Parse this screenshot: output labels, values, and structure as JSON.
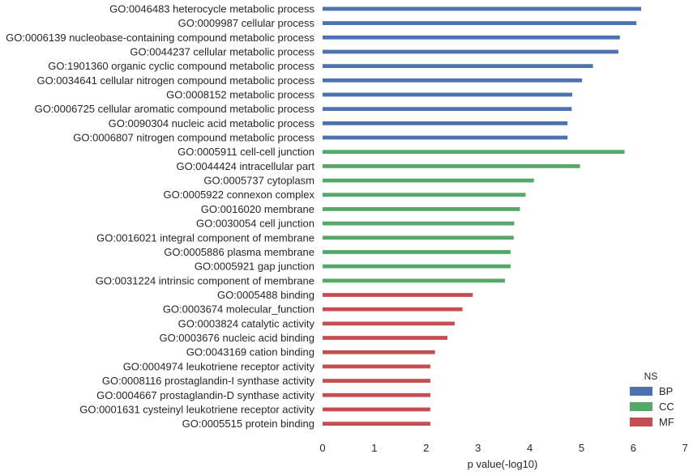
{
  "chart_data": {
    "type": "bar",
    "orientation": "horizontal",
    "xlabel": "p value(-log10)",
    "ylabel": "",
    "title": "",
    "xlim": [
      0,
      7
    ],
    "xticks": [
      0,
      1,
      2,
      3,
      4,
      5,
      6,
      7
    ],
    "grid": false,
    "legend": {
      "title": "NS",
      "placement": "bottom-right",
      "entries": [
        {
          "name": "BP",
          "color": "#4c72b0"
        },
        {
          "name": "CC",
          "color": "#55a868"
        },
        {
          "name": "MF",
          "color": "#c44e52"
        }
      ]
    },
    "bars": [
      {
        "label": "GO:0046483 heterocycle metabolic process",
        "value": 6.15,
        "ns": "BP"
      },
      {
        "label": "GO:0009987 cellular process",
        "value": 6.06,
        "ns": "BP"
      },
      {
        "label": "GO:0006139 nucleobase-containing compound metabolic process",
        "value": 5.74,
        "ns": "BP"
      },
      {
        "label": "GO:0044237 cellular metabolic process",
        "value": 5.71,
        "ns": "BP"
      },
      {
        "label": "GO:1901360 organic cyclic compound metabolic process",
        "value": 5.22,
        "ns": "BP"
      },
      {
        "label": "GO:0034641 cellular nitrogen compound metabolic process",
        "value": 5.01,
        "ns": "BP"
      },
      {
        "label": "GO:0008152 metabolic process",
        "value": 4.82,
        "ns": "BP"
      },
      {
        "label": "GO:0006725 cellular aromatic compound metabolic process",
        "value": 4.81,
        "ns": "BP"
      },
      {
        "label": "GO:0090304 nucleic acid metabolic process",
        "value": 4.73,
        "ns": "BP"
      },
      {
        "label": "GO:0006807 nitrogen compound metabolic process",
        "value": 4.73,
        "ns": "BP"
      },
      {
        "label": "GO:0005911 cell-cell junction",
        "value": 5.83,
        "ns": "CC"
      },
      {
        "label": "GO:0044424 intracellular part",
        "value": 4.97,
        "ns": "CC"
      },
      {
        "label": "GO:0005737 cytoplasm",
        "value": 4.08,
        "ns": "CC"
      },
      {
        "label": "GO:0005922 connexon complex",
        "value": 3.92,
        "ns": "CC"
      },
      {
        "label": "GO:0016020 membrane",
        "value": 3.81,
        "ns": "CC"
      },
      {
        "label": "GO:0030054 cell junction",
        "value": 3.7,
        "ns": "CC"
      },
      {
        "label": "GO:0016021 integral component of membrane",
        "value": 3.69,
        "ns": "CC"
      },
      {
        "label": "GO:0005886 plasma membrane",
        "value": 3.63,
        "ns": "CC"
      },
      {
        "label": "GO:0005921 gap junction",
        "value": 3.63,
        "ns": "CC"
      },
      {
        "label": "GO:0031224 intrinsic component of membrane",
        "value": 3.52,
        "ns": "CC"
      },
      {
        "label": "GO:0005488 binding",
        "value": 2.9,
        "ns": "MF"
      },
      {
        "label": "GO:0003674 molecular_function",
        "value": 2.7,
        "ns": "MF"
      },
      {
        "label": "GO:0003824 catalytic activity",
        "value": 2.55,
        "ns": "MF"
      },
      {
        "label": "GO:0003676 nucleic acid binding",
        "value": 2.41,
        "ns": "MF"
      },
      {
        "label": "GO:0043169 cation binding",
        "value": 2.17,
        "ns": "MF"
      },
      {
        "label": "GO:0004974 leukotriene receptor activity",
        "value": 2.08,
        "ns": "MF"
      },
      {
        "label": "GO:0008116 prostaglandin-I synthase activity",
        "value": 2.08,
        "ns": "MF"
      },
      {
        "label": "GO:0004667 prostaglandin-D synthase activity",
        "value": 2.08,
        "ns": "MF"
      },
      {
        "label": "GO:0001631 cysteinyl leukotriene receptor activity",
        "value": 2.08,
        "ns": "MF"
      },
      {
        "label": "GO:0005515 protein binding",
        "value": 2.08,
        "ns": "MF"
      }
    ]
  }
}
